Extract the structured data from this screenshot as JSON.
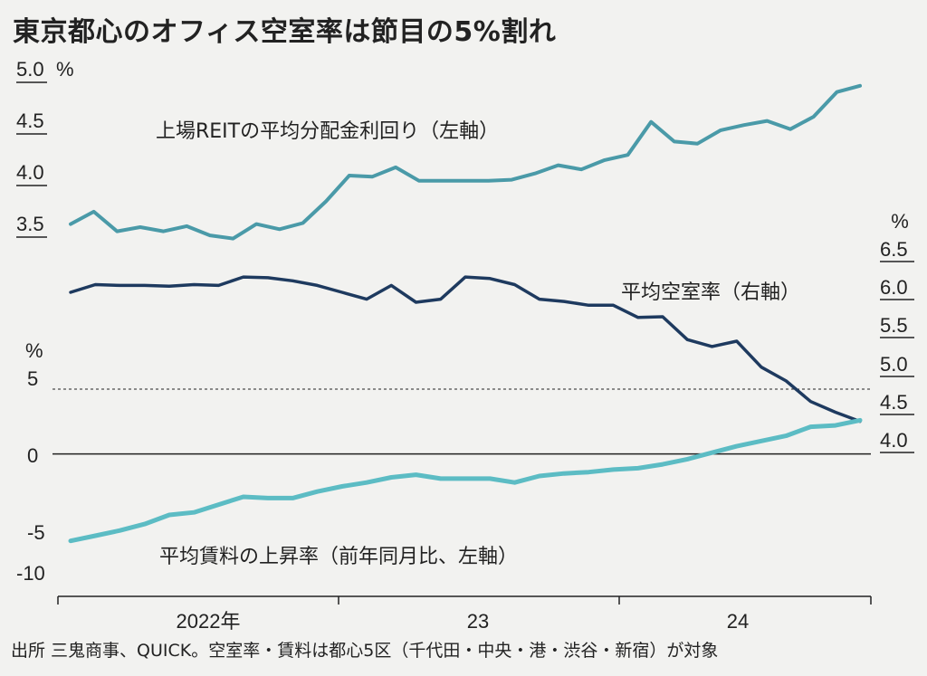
{
  "title": "東京都心のオフィス空室率は節目の5%割れ",
  "source": "出所 三鬼商事、QUICK。空室率・賃料は都心5区（千代田・中央・港・渋谷・新宿）が対象",
  "colors": {
    "yield": "#4a9aa8",
    "vacancy": "#1e3a5f",
    "rent": "#5cbcc4",
    "axis": "#222222"
  },
  "chart_data": [
    {
      "type": "line",
      "title": "上場REITの平均分配金利回り（左軸）",
      "axis": "left-top",
      "unit": "%",
      "ylim": [
        3.5,
        5.0
      ],
      "yticks": [
        "5.0",
        "4.5",
        "4.0",
        "3.5"
      ],
      "series": [
        {
          "name": "上場REITの平均分配金利回り（左軸）",
          "values": [
            3.6,
            3.72,
            3.53,
            3.57,
            3.53,
            3.58,
            3.49,
            3.46,
            3.6,
            3.55,
            3.61,
            3.82,
            4.07,
            4.06,
            4.15,
            4.02,
            4.02,
            4.02,
            4.02,
            4.03,
            4.09,
            4.17,
            4.13,
            4.22,
            4.27,
            4.59,
            4.4,
            4.38,
            4.51,
            4.56,
            4.6,
            4.52,
            4.64,
            4.88,
            4.94
          ]
        }
      ]
    },
    {
      "type": "line",
      "title": "平均空室率（右軸）",
      "axis": "right",
      "unit": "%",
      "ylim": [
        4.0,
        6.5
      ],
      "yticks": [
        "6.5",
        "6.0",
        "5.5",
        "5.0",
        "4.5",
        "4.0"
      ],
      "series": [
        {
          "name": "平均空室率（右軸）",
          "values": [
            6.05,
            6.15,
            6.14,
            6.14,
            6.13,
            6.15,
            6.14,
            6.25,
            6.24,
            6.2,
            6.14,
            6.05,
            5.96,
            6.14,
            5.92,
            5.96,
            6.25,
            6.23,
            6.15,
            5.96,
            5.93,
            5.88,
            5.88,
            5.72,
            5.73,
            5.43,
            5.34,
            5.41,
            5.07,
            4.89,
            4.62,
            4.48,
            4.36
          ]
        }
      ]
    },
    {
      "type": "line",
      "title": "平均賃料の上昇率（前年同月比、左軸）",
      "axis": "left-bottom",
      "unit": "%",
      "ylim": [
        -10,
        5
      ],
      "yticks": [
        "5",
        "0",
        "-5",
        "-10"
      ],
      "reference_line": 5,
      "series": [
        {
          "name": "平均賃料の上昇率（前年同月比、左軸）",
          "values": [
            -6.7,
            -6.3,
            -5.9,
            -5.4,
            -4.7,
            -4.5,
            -3.9,
            -3.3,
            -3.4,
            -3.4,
            -2.9,
            -2.5,
            -2.2,
            -1.8,
            -1.6,
            -1.9,
            -1.9,
            -1.9,
            -2.2,
            -1.7,
            -1.5,
            -1.4,
            -1.2,
            -1.1,
            -0.8,
            -0.4,
            0.1,
            0.6,
            1.0,
            1.4,
            2.1,
            2.2,
            2.6
          ]
        }
      ]
    }
  ],
  "x_axis": {
    "labels": [
      "2022年",
      "23",
      "24"
    ]
  }
}
